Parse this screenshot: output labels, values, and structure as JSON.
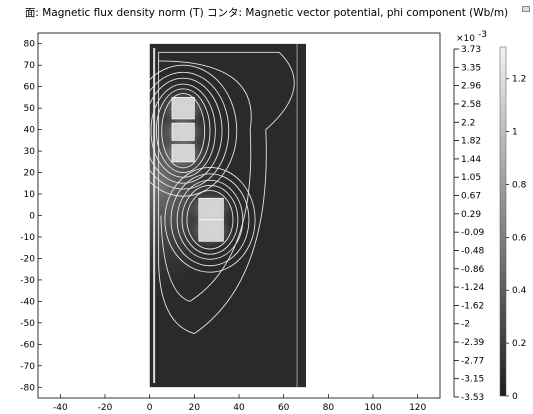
{
  "title": "面: Magnetic flux density norm (T)  コンタ: Magnetic vector potential, phi component (Wb/m)",
  "chart_data": {
    "type": "heatmap",
    "title": "面: Magnetic flux density norm (T)  コンタ: Magnetic vector potential, phi component (Wb/m)",
    "xlabel": "",
    "ylabel": "",
    "xlim": [
      -50,
      130
    ],
    "ylim": [
      -85,
      85
    ],
    "x_ticks": [
      -40,
      -20,
      0,
      20,
      40,
      60,
      80,
      100,
      120
    ],
    "y_ticks": [
      80,
      70,
      60,
      50,
      40,
      30,
      20,
      10,
      0,
      -10,
      -20,
      -30,
      -40,
      -50,
      -60,
      -70,
      -80
    ],
    "grid": false,
    "domain": {
      "r_range": [
        0,
        70
      ],
      "z_range": [
        -80,
        80
      ]
    },
    "coils": [
      {
        "r": [
          10,
          20
        ],
        "z": [
          45,
          55
        ]
      },
      {
        "r": [
          10,
          20
        ],
        "z": [
          35,
          43
        ]
      },
      {
        "r": [
          10,
          20
        ],
        "z": [
          25,
          33
        ]
      },
      {
        "r": [
          22,
          33
        ],
        "z": [
          -2,
          8
        ]
      },
      {
        "r": [
          22,
          33
        ],
        "z": [
          -12,
          -2
        ]
      }
    ],
    "contour_legend": {
      "exponent_label": "×10",
      "exponent": "-3",
      "levels": [
        "3.73",
        "3.35",
        "2.96",
        "2.58",
        "2.2",
        "1.82",
        "1.44",
        "1.05",
        "0.67",
        "0.29",
        "-0.09",
        "-0.48",
        "-0.86",
        "-1.24",
        "-1.62",
        "-2",
        "-2.39",
        "-2.77",
        "-3.15",
        "-3.53"
      ]
    },
    "colorbar": {
      "range": [
        0,
        1.32
      ],
      "ticks": [
        "1.2",
        "1",
        "0.8",
        "0.6",
        "0.4",
        "0.2",
        "0"
      ],
      "tick_values": [
        1.2,
        1.0,
        0.8,
        0.6,
        0.4,
        0.2,
        0
      ],
      "colormap": "grayscale",
      "color_low": "#1e1e1e",
      "color_high": "#f2f2f2"
    }
  }
}
